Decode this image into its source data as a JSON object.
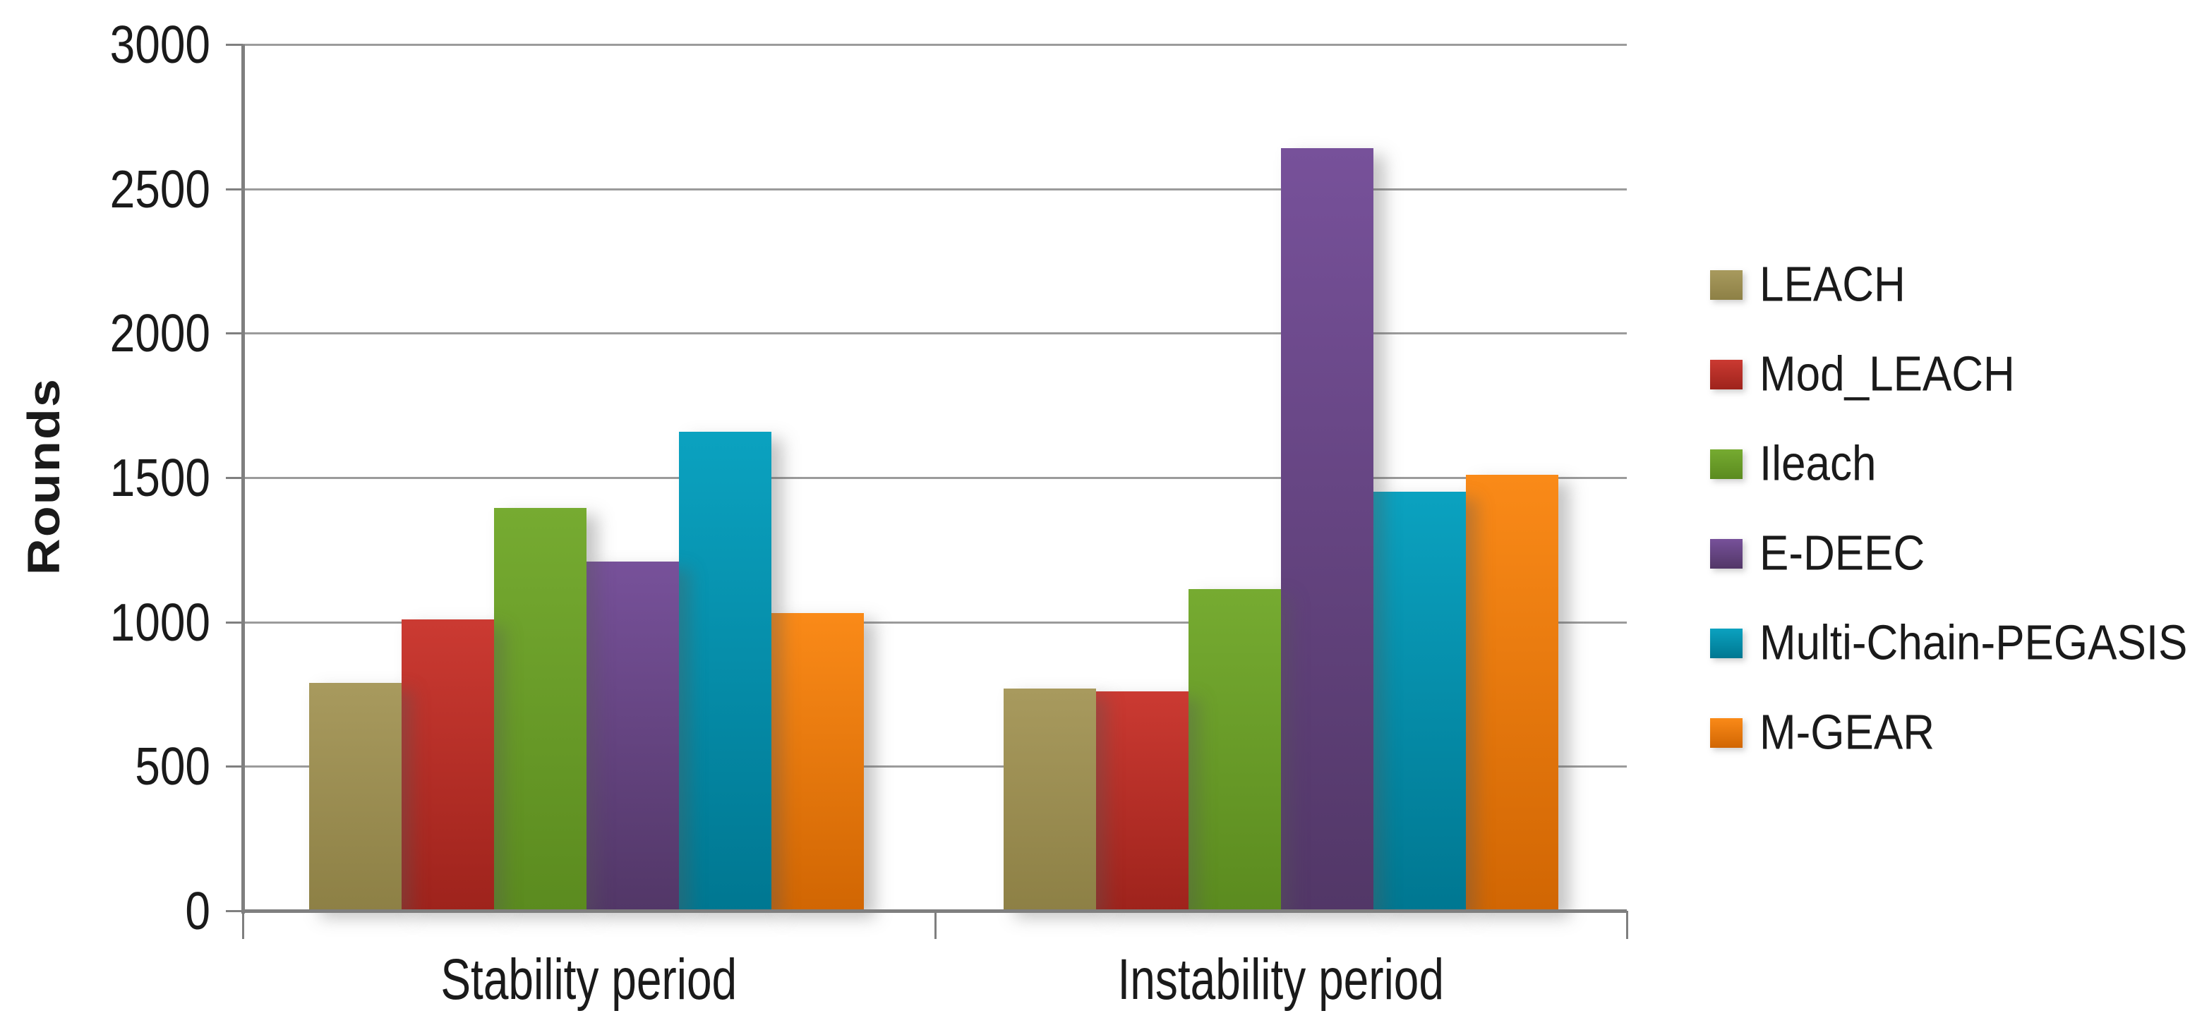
{
  "chart_data": {
    "type": "bar",
    "title": "",
    "ylabel": "Rounds",
    "xlabel": "",
    "categories": [
      "Stability period",
      "Instability period"
    ],
    "series": [
      {
        "name": "LEACH",
        "values": [
          790,
          770
        ],
        "color": "#9c8e52",
        "color_top": "#a89a5e",
        "color_bottom": "#8d8045"
      },
      {
        "name": "Mod_LEACH",
        "values": [
          1010,
          760
        ],
        "color": "#be2f27",
        "color_top": "#cb3a32",
        "color_bottom": "#9e231c"
      },
      {
        "name": "Ileach",
        "values": [
          1395,
          1115
        ],
        "color": "#6fa42c",
        "color_top": "#76ab31",
        "color_bottom": "#5b8b1f"
      },
      {
        "name": "E-DEEC",
        "values": [
          1210,
          2640
        ],
        "color": "#6b4a87",
        "color_top": "#77519a",
        "color_bottom": "#523767"
      },
      {
        "name": "Multi-Chain-PEGASIS",
        "values": [
          1660,
          1450
        ],
        "color": "#0096b1",
        "color_top": "#0ba2c0",
        "color_bottom": "#007791"
      },
      {
        "name": "M-GEAR",
        "values": [
          1030,
          1510
        ],
        "color": "#ef7d0f",
        "color_top": "#fa8a18",
        "color_bottom": "#d16603"
      }
    ],
    "ylim": [
      0,
      3000
    ],
    "ytick_step": 500,
    "yticks": [
      "0",
      "500",
      "1000",
      "1500",
      "2000",
      "2500",
      "3000"
    ],
    "grid": "horizontal",
    "legend_position": "right"
  },
  "colors": {
    "background": "#ffffff",
    "axis": "#7f7f7f",
    "gridline": "#9b9b9b",
    "text": "#1a1a1a"
  }
}
